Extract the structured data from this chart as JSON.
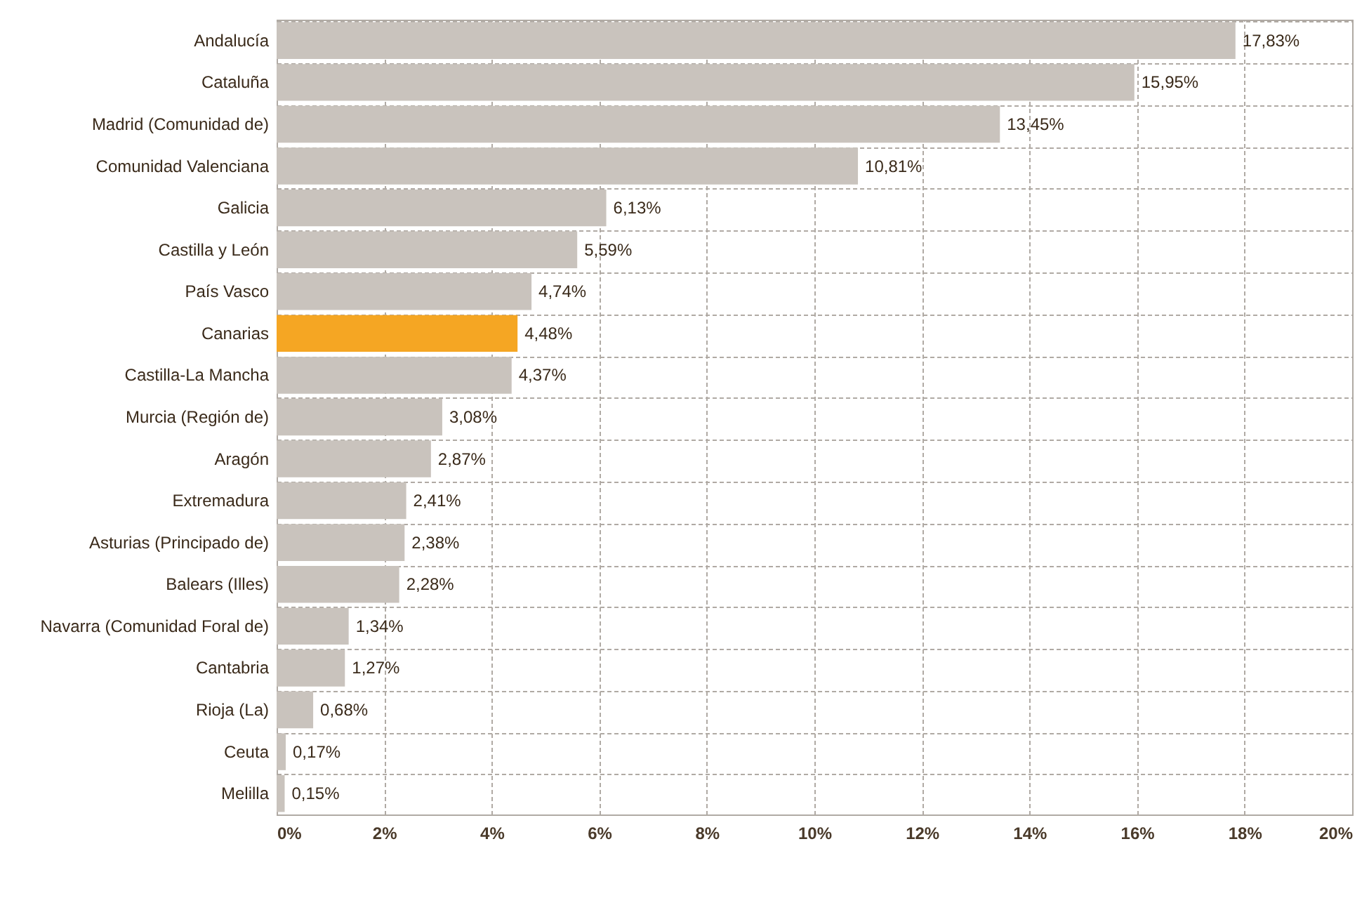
{
  "chart_data": {
    "type": "bar",
    "orientation": "horizontal",
    "categories": [
      "Andalucía",
      "Cataluña",
      "Madrid (Comunidad de)",
      "Comunidad Valenciana",
      "Galicia",
      "Castilla y León",
      "País Vasco",
      "Canarias",
      "Castilla-La Mancha",
      "Murcia (Región de)",
      "Aragón",
      "Extremadura",
      "Asturias (Principado de)",
      "Balears (Illes)",
      "Navarra (Comunidad Foral de)",
      "Cantabria",
      "Rioja (La)",
      "Ceuta",
      "Melilla"
    ],
    "values": [
      17.83,
      15.95,
      13.45,
      10.81,
      6.13,
      5.59,
      4.74,
      4.48,
      4.37,
      3.08,
      2.87,
      2.41,
      2.38,
      2.28,
      1.34,
      1.27,
      0.68,
      0.17,
      0.15
    ],
    "value_labels": [
      "17,83%",
      "15,95%",
      "13,45%",
      "10,81%",
      "6,13%",
      "5,59%",
      "4,74%",
      "4,48%",
      "4,37%",
      "3,08%",
      "2,87%",
      "2,41%",
      "2,38%",
      "2,28%",
      "1,34%",
      "1,27%",
      "0,68%",
      "0,17%",
      "0,15%"
    ],
    "colors": [
      "#c9c3bd",
      "#c9c3bd",
      "#c9c3bd",
      "#c9c3bd",
      "#c9c3bd",
      "#c9c3bd",
      "#c9c3bd",
      "#f5a623",
      "#c9c3bd",
      "#c9c3bd",
      "#c9c3bd",
      "#c9c3bd",
      "#c9c3bd",
      "#c9c3bd",
      "#c9c3bd",
      "#c9c3bd",
      "#c9c3bd",
      "#c9c3bd",
      "#c9c3bd"
    ],
    "xlim": [
      0,
      20
    ],
    "xticks": [
      {
        "value": 0,
        "label": "0%"
      },
      {
        "value": 2,
        "label": "2%"
      },
      {
        "value": 4,
        "label": "4%"
      },
      {
        "value": 6,
        "label": "6%"
      },
      {
        "value": 8,
        "label": "8%"
      },
      {
        "value": 10,
        "label": "10%"
      },
      {
        "value": 12,
        "label": "12%"
      },
      {
        "value": 14,
        "label": "14%"
      },
      {
        "value": 16,
        "label": "16%"
      },
      {
        "value": 18,
        "label": "18%"
      },
      {
        "value": 20,
        "label": "20%"
      }
    ],
    "grid": true
  }
}
